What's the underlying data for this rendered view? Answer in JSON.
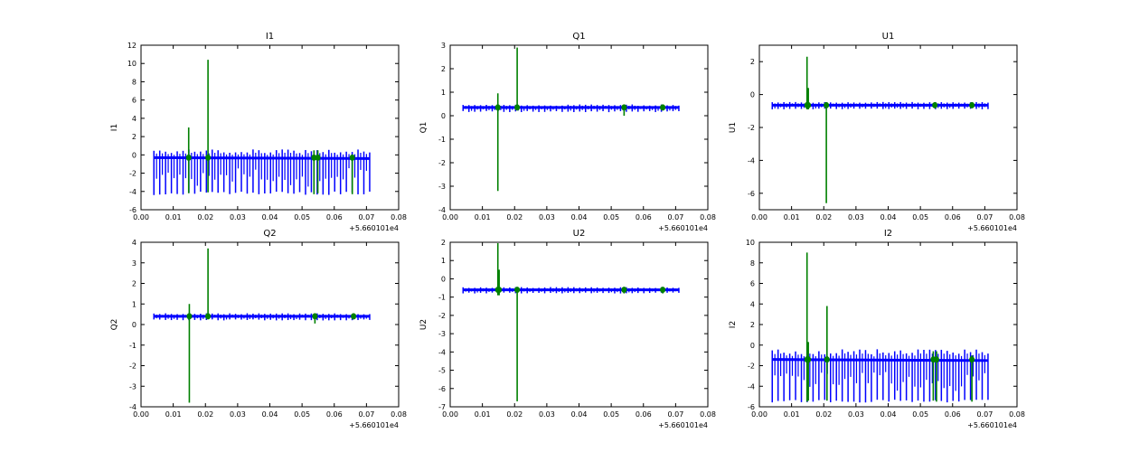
{
  "chart_data": [
    {
      "type": "line",
      "title": "I1",
      "xlabel": "",
      "ylabel": "I1",
      "xlim": [
        0.0,
        0.08
      ],
      "ylim": [
        -6,
        12
      ],
      "xticks": [
        "0.00",
        "0.01",
        "0.02",
        "0.03",
        "0.04",
        "0.05",
        "0.06",
        "0.07",
        "0.08"
      ],
      "yticks": [
        "-6",
        "-4",
        "-2",
        "0",
        "2",
        "4",
        "6",
        "8",
        "10",
        "12"
      ],
      "x_offset_label": "+5.660101e4",
      "baseline": -0.3,
      "blue_spikes": {
        "x_start": 0.004,
        "x_end": 0.071,
        "count": 38,
        "upper": [
          0.2,
          0.6
        ],
        "lower": [
          -4.0,
          -4.4
        ]
      },
      "series": [
        {
          "color": "#0000ff",
          "x": [
            0.004,
            0.071
          ],
          "y": [
            -0.3,
            -0.4
          ]
        },
        {
          "color": "#008000",
          "spikes": [
            {
              "x": 0.0148,
              "low": -4.2,
              "high": 3.0
            },
            {
              "x": 0.0208,
              "low": -4.1,
              "high": 10.4
            },
            {
              "x": 0.0537,
              "low": -4.3,
              "high": 0.5
            },
            {
              "x": 0.0549,
              "low": -4.2,
              "high": 0.5
            },
            {
              "x": 0.0656,
              "low": -4.3,
              "high": 0.0
            }
          ]
        }
      ]
    },
    {
      "type": "line",
      "title": "Q1",
      "xlabel": "",
      "ylabel": "Q1",
      "xlim": [
        0.0,
        0.08
      ],
      "ylim": [
        -4,
        3
      ],
      "xticks": [
        "0.00",
        "0.01",
        "0.02",
        "0.03",
        "0.04",
        "0.05",
        "0.06",
        "0.07",
        "0.08"
      ],
      "yticks": [
        "-4",
        "-3",
        "-2",
        "-1",
        "0",
        "1",
        "2",
        "3"
      ],
      "x_offset_label": "+5.660101e4",
      "baseline": 0.35,
      "blue_spikes": {
        "x_start": 0.004,
        "x_end": 0.071,
        "count": 38,
        "upper": [
          0.42,
          0.48
        ],
        "lower": [
          0.15,
          0.2
        ]
      },
      "series": [
        {
          "color": "#0000ff",
          "x": [
            0.004,
            0.071
          ],
          "y": [
            0.35,
            0.35
          ]
        },
        {
          "color": "#008000",
          "spikes": [
            {
              "x": 0.0148,
              "low": -3.2,
              "high": 0.95
            },
            {
              "x": 0.0208,
              "low": 0.3,
              "high": 2.9
            },
            {
              "x": 0.054,
              "low": 0.0,
              "high": 0.45
            },
            {
              "x": 0.066,
              "low": 0.25,
              "high": 0.45
            }
          ]
        }
      ]
    },
    {
      "type": "line",
      "title": "U1",
      "xlabel": "",
      "ylabel": "U1",
      "xlim": [
        0.0,
        0.08
      ],
      "ylim": [
        -7,
        3
      ],
      "xticks": [
        "0.00",
        "0.01",
        "0.02",
        "0.03",
        "0.04",
        "0.05",
        "0.06",
        "0.07",
        "0.08"
      ],
      "yticks": [
        "-6",
        "-4",
        "-2",
        "0",
        "2"
      ],
      "x_offset_label": "+5.660101e4",
      "baseline": -0.65,
      "blue_spikes": {
        "x_start": 0.004,
        "x_end": 0.071,
        "count": 38,
        "upper": [
          -0.5,
          -0.45
        ],
        "lower": [
          -0.85,
          -0.9
        ]
      },
      "series": [
        {
          "color": "#0000ff",
          "x": [
            0.004,
            0.071
          ],
          "y": [
            -0.65,
            -0.65
          ]
        },
        {
          "color": "#008000",
          "spikes": [
            {
              "x": 0.0148,
              "low": -0.9,
              "high": 2.3
            },
            {
              "x": 0.0152,
              "low": -0.9,
              "high": 0.4
            },
            {
              "x": 0.0208,
              "low": -6.6,
              "high": -0.5
            },
            {
              "x": 0.0545,
              "low": -0.8,
              "high": -0.5
            },
            {
              "x": 0.066,
              "low": -0.8,
              "high": -0.5
            }
          ]
        }
      ]
    },
    {
      "type": "line",
      "title": "Q2",
      "xlabel": "",
      "ylabel": "Q2",
      "xlim": [
        0.0,
        0.08
      ],
      "ylim": [
        -4,
        4
      ],
      "xticks": [
        "0.00",
        "0.01",
        "0.02",
        "0.03",
        "0.04",
        "0.05",
        "0.06",
        "0.07",
        "0.08"
      ],
      "yticks": [
        "-4",
        "-3",
        "-2",
        "-1",
        "0",
        "1",
        "2",
        "3",
        "4"
      ],
      "x_offset_label": "+5.660101e4",
      "baseline": 0.4,
      "blue_spikes": {
        "x_start": 0.004,
        "x_end": 0.071,
        "count": 38,
        "upper": [
          0.5,
          0.55
        ],
        "lower": [
          0.2,
          0.25
        ]
      },
      "series": [
        {
          "color": "#0000ff",
          "x": [
            0.004,
            0.071
          ],
          "y": [
            0.4,
            0.4
          ]
        },
        {
          "color": "#008000",
          "spikes": [
            {
              "x": 0.015,
              "low": -3.8,
              "high": 1.0
            },
            {
              "x": 0.0208,
              "low": 0.3,
              "high": 3.7
            },
            {
              "x": 0.054,
              "low": 0.05,
              "high": 0.5
            },
            {
              "x": 0.066,
              "low": 0.25,
              "high": 0.5
            }
          ]
        }
      ]
    },
    {
      "type": "line",
      "title": "U2",
      "xlabel": "",
      "ylabel": "U2",
      "xlim": [
        0.0,
        0.08
      ],
      "ylim": [
        -7,
        2
      ],
      "xticks": [
        "0.00",
        "0.01",
        "0.02",
        "0.03",
        "0.04",
        "0.05",
        "0.06",
        "0.07",
        "0.08"
      ],
      "yticks": [
        "-7",
        "-6",
        "-5",
        "-4",
        "-3",
        "-2",
        "-1",
        "0",
        "1",
        "2"
      ],
      "x_offset_label": "+5.660101e4",
      "baseline": -0.6,
      "blue_spikes": {
        "x_start": 0.004,
        "x_end": 0.071,
        "count": 38,
        "upper": [
          -0.5,
          -0.45
        ],
        "lower": [
          -0.75,
          -0.8
        ]
      },
      "series": [
        {
          "color": "#0000ff",
          "x": [
            0.004,
            0.071
          ],
          "y": [
            -0.6,
            -0.6
          ]
        },
        {
          "color": "#008000",
          "spikes": [
            {
              "x": 0.0148,
              "low": -0.9,
              "high": 1.95
            },
            {
              "x": 0.0152,
              "low": -0.9,
              "high": 0.5
            },
            {
              "x": 0.0208,
              "low": -6.7,
              "high": -0.45
            },
            {
              "x": 0.054,
              "low": -0.8,
              "high": -0.45
            },
            {
              "x": 0.066,
              "low": -0.8,
              "high": -0.45
            }
          ]
        }
      ]
    },
    {
      "type": "line",
      "title": "I2",
      "xlabel": "",
      "ylabel": "I2",
      "xlim": [
        0.0,
        0.08
      ],
      "ylim": [
        -6,
        10
      ],
      "xticks": [
        "0.00",
        "0.01",
        "0.02",
        "0.03",
        "0.04",
        "0.05",
        "0.06",
        "0.07",
        "0.08"
      ],
      "yticks": [
        "-6",
        "-4",
        "-2",
        "0",
        "2",
        "4",
        "6",
        "8",
        "10"
      ],
      "x_offset_label": "+5.660101e4",
      "baseline": -1.4,
      "blue_spikes": {
        "x_start": 0.004,
        "x_end": 0.071,
        "count": 38,
        "upper": [
          -0.9,
          -0.4
        ],
        "lower": [
          -5.3,
          -5.6
        ]
      },
      "series": [
        {
          "color": "#0000ff",
          "x": [
            0.004,
            0.071
          ],
          "y": [
            -1.4,
            -1.5
          ]
        },
        {
          "color": "#008000",
          "spikes": [
            {
              "x": 0.0148,
              "low": -5.5,
              "high": 9.0
            },
            {
              "x": 0.0152,
              "low": -5.4,
              "high": 0.3
            },
            {
              "x": 0.021,
              "low": -5.4,
              "high": 3.8
            },
            {
              "x": 0.054,
              "low": -5.4,
              "high": -0.6
            },
            {
              "x": 0.055,
              "low": -5.5,
              "high": -0.6
            },
            {
              "x": 0.066,
              "low": -5.5,
              "high": -1.0
            }
          ]
        }
      ]
    }
  ]
}
